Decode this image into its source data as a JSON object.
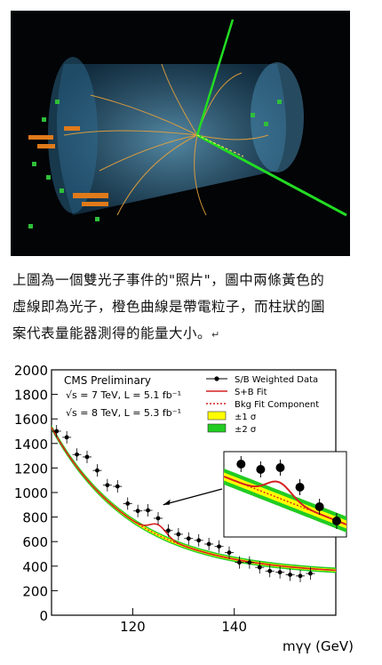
{
  "caption": {
    "lines": [
      "上圖為一個雙光子事件的\"照片\"，圖中兩條黃色的",
      "虛線即為光子，橙色曲線是帶電粒子，而柱狀的圖",
      "案代表量能器測得的能量大小。"
    ],
    "return_mark": "↵"
  },
  "chart_data": {
    "type": "scatter",
    "title": "CMS Preliminary",
    "annotations": [
      "√s = 7 TeV, L = 5.1 fb⁻¹",
      "√s = 8 TeV, L = 5.3 fb⁻¹"
    ],
    "xlabel": "m_γγ (GeV)",
    "xlabel_display": "mγγ (GeV)",
    "ylabel": "",
    "xlim": [
      104,
      160
    ],
    "ylim": [
      0,
      2000
    ],
    "x_ticks": [
      120,
      140
    ],
    "y_ticks": [
      0,
      200,
      400,
      600,
      800,
      1000,
      1200,
      1400,
      1600,
      1800,
      2000
    ],
    "legend": {
      "position": "top-right",
      "entries": [
        {
          "label": "S/B Weighted Data",
          "style": "marker-errorbar"
        },
        {
          "label": "S+B Fit",
          "style": "solid",
          "color": "#d42020"
        },
        {
          "label": "Bkg Fit Component",
          "style": "dotted",
          "color": "#d42020"
        },
        {
          "label": "±1 σ",
          "style": "band",
          "color": "#ffff00"
        },
        {
          "label": "±2 σ",
          "style": "band",
          "color": "#22cc22"
        }
      ]
    },
    "series": [
      {
        "name": "S/B Weighted Data",
        "x": [
          105,
          107,
          109,
          111,
          113,
          115,
          117,
          119,
          121,
          123,
          125,
          127,
          129,
          131,
          133,
          135,
          137,
          139,
          141,
          143,
          145,
          147,
          149,
          151,
          153,
          155
        ],
        "y": [
          1500,
          1450,
          1310,
          1290,
          1180,
          1060,
          1050,
          910,
          850,
          855,
          790,
          690,
          660,
          625,
          610,
          580,
          560,
          510,
          430,
          430,
          390,
          360,
          350,
          330,
          320,
          340
        ]
      }
    ],
    "fits": {
      "s_plus_b_peak_x": 125,
      "s_plus_b_peak_y": 860
    },
    "inset": {
      "description": "zoom of signal region",
      "points_x": [
        120,
        122,
        124,
        126,
        128,
        130,
        132
      ],
      "points_y": [
        1200,
        1260,
        1220,
        1250,
        1060,
        880,
        760
      ]
    },
    "colors": {
      "band_1sigma": "#ffff00",
      "band_2sigma": "#22cc22",
      "fit": "#d42020"
    }
  }
}
